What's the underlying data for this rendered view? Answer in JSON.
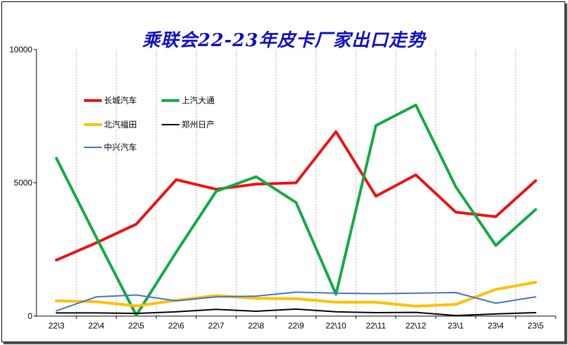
{
  "chart_data": {
    "type": "line",
    "title": "乘联会22-23年皮卡厂家出口走势",
    "categories": [
      "22\\3",
      "22\\4",
      "22\\5",
      "22\\6",
      "22\\7",
      "22\\8",
      "22\\9",
      "22\\10",
      "22\\11",
      "22\\12",
      "23\\1",
      "23\\4",
      "23\\5"
    ],
    "ylim": [
      0,
      10000
    ],
    "yticks": [
      "0",
      "5000",
      "10000"
    ],
    "grid": "vertical dashed",
    "legend_position": "top-left",
    "series": [
      {
        "name": "长城汽车",
        "color": "#ee1111",
        "width": 4,
        "values": [
          2100,
          2750,
          3450,
          5120,
          4760,
          4950,
          5000,
          6920,
          4500,
          5300,
          3900,
          3730,
          5080
        ]
      },
      {
        "name": "上汽大通",
        "color": "#11aa44",
        "width": 4,
        "values": [
          5920,
          2950,
          30,
          2400,
          4680,
          5230,
          4260,
          820,
          7150,
          7920,
          4850,
          2650,
          4000
        ]
      },
      {
        "name": "北汽福田",
        "color": "#ffc000",
        "width": 4,
        "values": [
          570,
          540,
          380,
          590,
          770,
          670,
          650,
          520,
          520,
          370,
          440,
          1000,
          1270
        ]
      },
      {
        "name": "郑州日产",
        "color": "#000000",
        "width": 2,
        "values": [
          120,
          120,
          100,
          160,
          250,
          180,
          260,
          160,
          130,
          140,
          20,
          80,
          130
        ]
      },
      {
        "name": "中兴汽车",
        "color": "#4472c4",
        "width": 2,
        "values": [
          200,
          720,
          790,
          570,
          720,
          750,
          900,
          860,
          840,
          860,
          880,
          480,
          720
        ]
      }
    ]
  }
}
